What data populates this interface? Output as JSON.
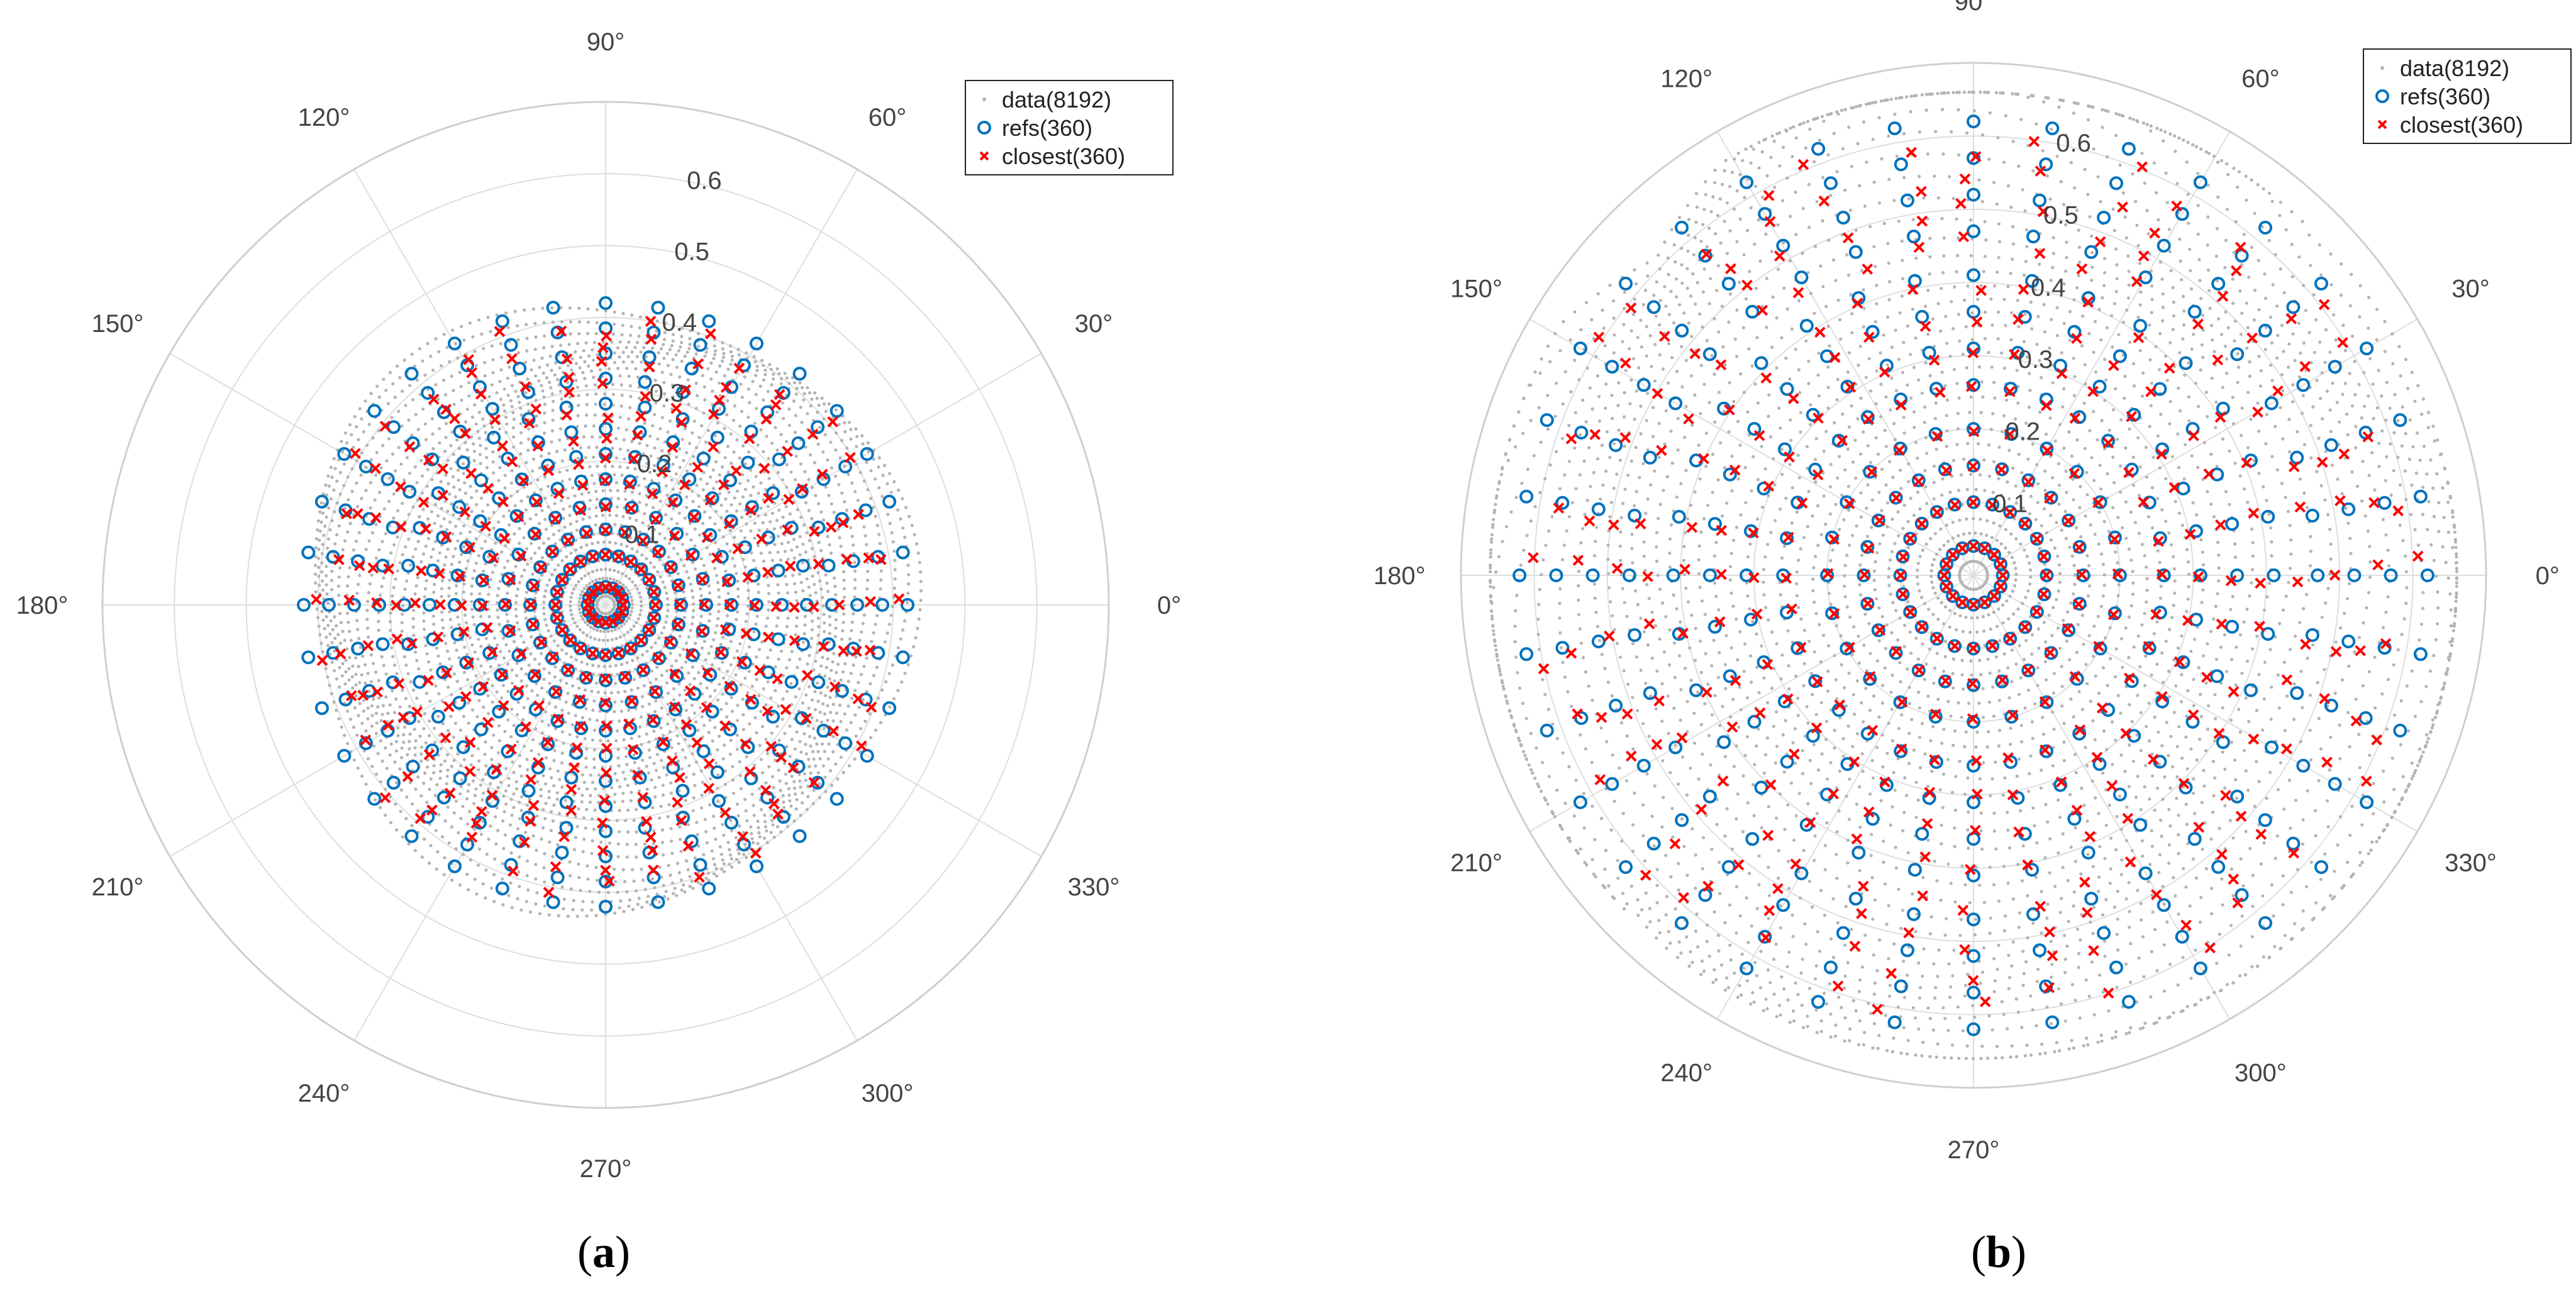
{
  "chart_data": [
    {
      "type": "scatter",
      "coordinate_system": "polar",
      "panel_label": "a",
      "caption_open": "(",
      "caption_close": ")",
      "theta_ticks_deg": [
        0,
        30,
        60,
        90,
        120,
        150,
        180,
        210,
        240,
        270,
        300,
        330
      ],
      "theta_tick_labels": [
        "0°",
        "30°",
        "60°",
        "90°",
        "120°",
        "150°",
        "180°",
        "210°",
        "240°",
        "270°",
        "300°",
        "330°"
      ],
      "r_ticks": [
        0.1,
        0.2,
        0.3,
        0.4,
        0.5,
        0.6
      ],
      "r_tick_labels": [
        "0.1",
        "0.2",
        "0.3",
        "0.4",
        "0.5",
        "0.6"
      ],
      "rlim": [
        0,
        0.7
      ],
      "grid": true,
      "legend": {
        "placement": "top-right",
        "entries": [
          "data(8192)",
          "refs(360)",
          "closest(360)"
        ]
      },
      "series": [
        {
          "name": "data(8192)",
          "marker": "dot",
          "color": "#b4b4b4",
          "count": 8192,
          "shape": "nested near-circular rings (center tight, outer rings slightly distorted)",
          "radial_extent": [
            0,
            0.42
          ]
        },
        {
          "name": "refs(360)",
          "marker": "circle",
          "color": "#0072bd",
          "rings_r": [
            0.025,
            0.07,
            0.105,
            0.14,
            0.175,
            0.21,
            0.245,
            0.28,
            0.315,
            0.35,
            0.385,
            0.42
          ],
          "points_per_ring": [
            16,
            24,
            24,
            24,
            32,
            32,
            32,
            32,
            36,
            36,
            36,
            36
          ]
        },
        {
          "name": "closest(360)",
          "marker": "x",
          "color": "#ff0000",
          "description": "nearest data point to each ref; mostly overlapping refs, inward on outer rings",
          "radial_shrink": 0.93
        }
      ]
    },
    {
      "type": "scatter",
      "coordinate_system": "polar",
      "panel_label": "b",
      "caption_open": "(",
      "caption_close": ")",
      "theta_ticks_deg": [
        0,
        30,
        60,
        90,
        120,
        150,
        180,
        210,
        240,
        270,
        300,
        330
      ],
      "theta_tick_labels": [
        "0°",
        "30°",
        "60°",
        "90°",
        "120°",
        "150°",
        "180°",
        "210°",
        "240°",
        "270°",
        "300°",
        "330°"
      ],
      "r_ticks": [
        0.1,
        0.2,
        0.3,
        0.4,
        0.5,
        0.6
      ],
      "r_tick_labels": [
        "0.1",
        "0.2",
        "0.3",
        "0.4",
        "0.5",
        "0.6"
      ],
      "rlim": [
        0,
        0.7
      ],
      "grid": true,
      "legend": {
        "placement": "top-right",
        "entries": [
          "data(8192)",
          "refs(360)",
          "closest(360)"
        ]
      },
      "series": [
        {
          "name": "data(8192)",
          "marker": "dot",
          "color": "#b4b4b4",
          "count": 8192,
          "shape": "nested distorted square-like contours extending to ~0.65",
          "radial_extent": [
            0,
            0.65
          ]
        },
        {
          "name": "refs(360)",
          "marker": "circle",
          "color": "#0072bd",
          "rings_r": [
            0.04,
            0.1,
            0.15,
            0.2,
            0.26,
            0.31,
            0.36,
            0.41,
            0.47,
            0.52,
            0.57,
            0.62
          ],
          "points_per_ring": [
            16,
            24,
            24,
            24,
            32,
            32,
            32,
            32,
            36,
            36,
            36,
            36
          ]
        },
        {
          "name": "closest(360)",
          "marker": "x",
          "color": "#ff0000",
          "description": "nearest data point to each ref; scattered around distorted contours",
          "radial_shrink": 0.95
        }
      ]
    }
  ]
}
